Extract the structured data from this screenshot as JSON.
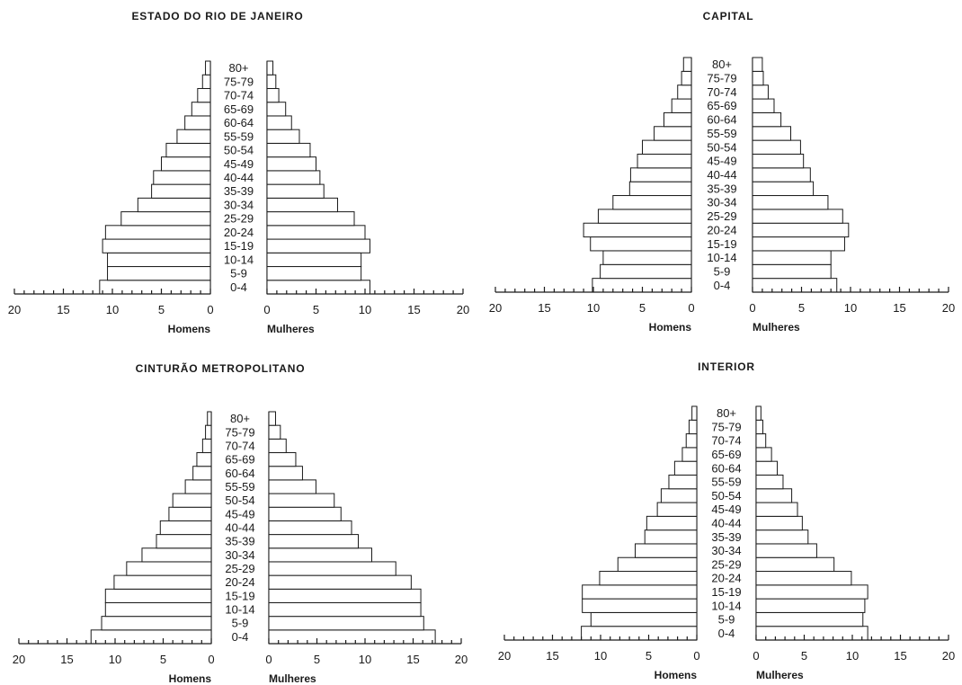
{
  "chart_data": [
    {
      "type": "bar",
      "title": "ESTADO DO RIO DE JANEIRO",
      "categories": [
        "0-4",
        "5-9",
        "10-14",
        "15-19",
        "20-24",
        "25-29",
        "30-34",
        "35-39",
        "40-44",
        "45-49",
        "50-54",
        "55-59",
        "60-64",
        "65-69",
        "70-74",
        "75-79",
        "80+"
      ],
      "series": [
        {
          "name": "Homens",
          "values": [
            11.3,
            10.5,
            10.5,
            11.0,
            10.7,
            9.1,
            7.4,
            6.0,
            5.8,
            5.0,
            4.5,
            3.4,
            2.6,
            1.9,
            1.3,
            0.8,
            0.5
          ]
        },
        {
          "name": "Mulheres",
          "values": [
            10.5,
            9.6,
            9.6,
            10.5,
            10.0,
            8.9,
            7.2,
            5.8,
            5.4,
            5.0,
            4.4,
            3.3,
            2.5,
            1.9,
            1.2,
            0.9,
            0.6
          ]
        }
      ],
      "xlim": [
        0,
        20
      ],
      "xticks": [
        "20",
        "15",
        "10",
        "5",
        "0"
      ],
      "xlabel_left": "Homens",
      "xlabel_right": "Mulheres"
    },
    {
      "type": "bar",
      "title": "CAPITAL",
      "categories": [
        "0-4",
        "5-9",
        "10-14",
        "15-19",
        "20-24",
        "25-29",
        "30-34",
        "35-39",
        "40-44",
        "45-49",
        "50-54",
        "55-59",
        "60-64",
        "65-69",
        "70-74",
        "75-79",
        "80+"
      ],
      "series": [
        {
          "name": "Homens",
          "values": [
            10.1,
            9.3,
            9.0,
            10.3,
            11.0,
            9.5,
            8.0,
            6.3,
            6.2,
            5.5,
            5.0,
            3.8,
            2.8,
            2.0,
            1.4,
            1.0,
            0.8
          ]
        },
        {
          "name": "Mulheres",
          "values": [
            8.6,
            8.0,
            8.0,
            9.4,
            9.8,
            9.2,
            7.7,
            6.2,
            5.9,
            5.2,
            4.9,
            3.9,
            2.9,
            2.2,
            1.6,
            1.1,
            1.0
          ]
        }
      ],
      "xlim": [
        0,
        20
      ],
      "xticks": [
        "20",
        "15",
        "10",
        "5",
        "0"
      ],
      "xlabel_left": "Homens",
      "xlabel_right": "Mulheres"
    },
    {
      "type": "bar",
      "title": "CINTURÃO METROPOLITANO",
      "categories": [
        "0-4",
        "5-9",
        "10-14",
        "15-19",
        "20-24",
        "25-29",
        "30-34",
        "35-39",
        "40-44",
        "45-49",
        "50-54",
        "55-59",
        "60-64",
        "65-69",
        "70-74",
        "75-79",
        "80+"
      ],
      "series": [
        {
          "name": "Homens",
          "values": [
            12.5,
            11.4,
            11.0,
            11.0,
            10.1,
            8.8,
            7.2,
            5.7,
            5.3,
            4.4,
            4.0,
            2.7,
            1.9,
            1.5,
            0.9,
            0.6,
            0.4
          ]
        },
        {
          "name": "Mulheres",
          "values": [
            17.3,
            16.1,
            15.8,
            15.8,
            14.8,
            13.2,
            10.7,
            9.3,
            8.6,
            7.5,
            6.8,
            4.9,
            3.5,
            2.8,
            1.8,
            1.2,
            0.7
          ]
        }
      ],
      "xlim": [
        0,
        20
      ],
      "xticks": [
        "20",
        "15",
        "10",
        "5",
        "0"
      ],
      "xlabel_left": "Homens",
      "xlabel_right": "Mulheres"
    },
    {
      "type": "bar",
      "title": "INTERIOR",
      "categories": [
        "0-4",
        "5-9",
        "10-14",
        "15-19",
        "20-24",
        "25-29",
        "30-34",
        "35-39",
        "40-44",
        "45-49",
        "50-54",
        "55-59",
        "60-64",
        "65-69",
        "70-74",
        "75-79",
        "80+"
      ],
      "series": [
        {
          "name": "Homens",
          "values": [
            12.0,
            11.0,
            11.9,
            11.9,
            10.1,
            8.2,
            6.4,
            5.4,
            5.2,
            4.1,
            3.7,
            2.9,
            2.3,
            1.5,
            1.1,
            0.8,
            0.5
          ]
        },
        {
          "name": "Mulheres",
          "values": [
            11.6,
            11.1,
            11.3,
            11.6,
            9.9,
            8.1,
            6.3,
            5.4,
            4.8,
            4.3,
            3.7,
            2.8,
            2.2,
            1.6,
            1.0,
            0.7,
            0.5
          ]
        }
      ],
      "xlim": [
        0,
        20
      ],
      "xticks": [
        "20",
        "15",
        "10",
        "5",
        "0"
      ],
      "xlabel_left": "Homens",
      "xlabel_right": "Mulheres"
    }
  ],
  "age_labels": [
    "0-4",
    "5-9",
    "10-14",
    "15-19",
    "20-24",
    "25-29",
    "30-34",
    "35-39",
    "40-44",
    "45-49",
    "50-54",
    "55-59",
    "60-64",
    "65-69",
    "70-74",
    "75-79",
    "80+"
  ],
  "right_ticks": [
    "0",
    "5",
    "10",
    "15",
    "20"
  ]
}
